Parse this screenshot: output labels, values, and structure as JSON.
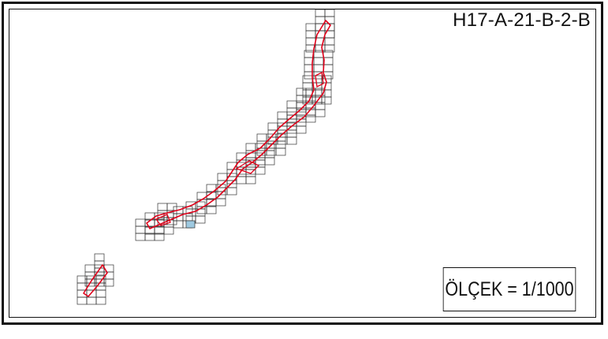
{
  "sheet": {
    "code": "H17-A-21-B-2-B",
    "scale_label": "ÖLÇEK = 1/1000"
  },
  "colors": {
    "grid_line": "#333333",
    "parcel_outline": "#e0001a",
    "highlight_cell": "#9ec9e0",
    "frame": "#111111"
  }
}
